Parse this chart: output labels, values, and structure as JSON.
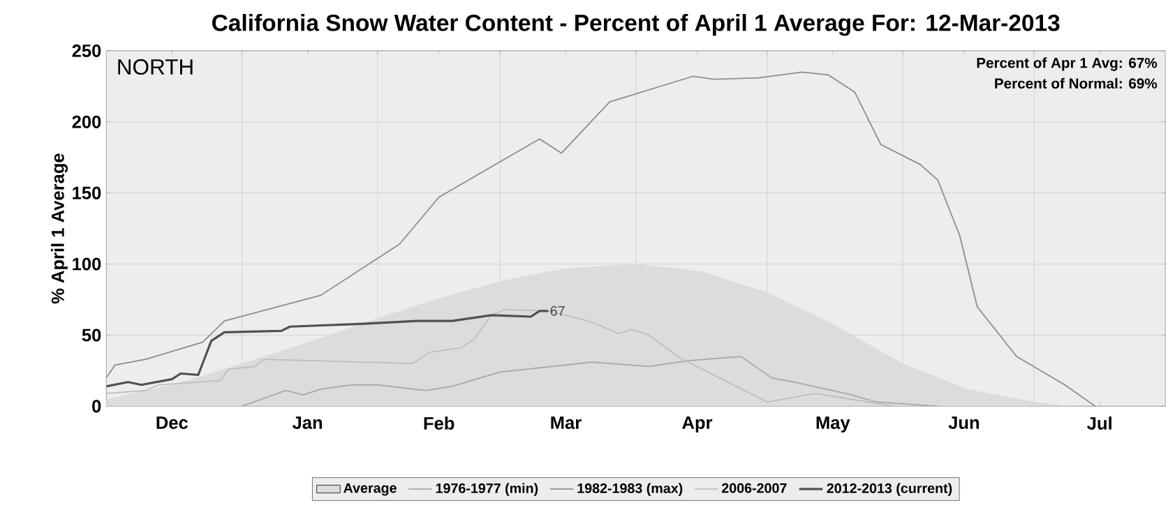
{
  "chart_data": {
    "type": "line",
    "title": "California Snow Water Content - Percent of April 1 Average For: 12-Mar-2013",
    "ylabel": "% April 1 Average",
    "x": [
      "2012-12-01",
      "2012-12-16",
      "2013-01-01",
      "2013-01-16",
      "2013-02-01",
      "2013-02-14",
      "2013-03-01",
      "2013-03-16",
      "2013-04-01",
      "2013-04-16",
      "2013-05-01",
      "2013-05-16",
      "2013-06-01",
      "2013-06-16",
      "2013-07-01",
      "2013-07-09"
    ],
    "xlim": [
      "2012-12-01",
      "2013-07-31"
    ],
    "xticks": [
      {
        "value": "2012-12-16",
        "label": "Dec"
      },
      {
        "value": "2013-01-16",
        "label": "Jan"
      },
      {
        "value": "2013-02-15",
        "label": "Feb"
      },
      {
        "value": "2013-03-16",
        "label": "Mar"
      },
      {
        "value": "2013-04-15",
        "label": "Apr"
      },
      {
        "value": "2013-05-16",
        "label": "May"
      },
      {
        "value": "2013-06-15",
        "label": "Jun"
      },
      {
        "value": "2013-07-16",
        "label": "Jul"
      },
      {
        "value": "2013-01-01",
        "label": null
      },
      {
        "value": "2013-02-01",
        "label": null
      },
      {
        "value": "2013-03-01",
        "label": null
      },
      {
        "value": "2013-04-01",
        "label": null
      },
      {
        "value": "2013-05-01",
        "label": null
      },
      {
        "value": "2013-06-01",
        "label": null
      },
      {
        "value": "2013-07-01",
        "label": null
      }
    ],
    "ylim": [
      0,
      250
    ],
    "yticks": [
      0,
      50,
      100,
      150,
      200,
      250
    ],
    "grid": true,
    "legend": "bottom",
    "series": [
      {
        "name": "Average",
        "type": "area",
        "color": "#dcdcdc",
        "values": [
          5,
          15,
          30,
          45,
          62,
          75,
          88,
          97,
          100,
          95,
          80,
          58,
          30,
          12,
          3,
          0
        ]
      },
      {
        "name": "1976-1977 (min)",
        "color": "#a8a8a8",
        "x": [
          "2013-01-01",
          "2013-01-11",
          "2013-01-15",
          "2013-01-19",
          "2013-01-26",
          "2013-02-01",
          "2013-02-12",
          "2013-02-18",
          "2013-03-01",
          "2013-03-22",
          "2013-04-04",
          "2013-04-13",
          "2013-04-25",
          "2013-05-02",
          "2013-05-07",
          "2013-05-19",
          "2013-05-26",
          "2013-06-09"
        ],
        "values": [
          0,
          11,
          8,
          12,
          15,
          15,
          11,
          14,
          24,
          31,
          28,
          32,
          35,
          20,
          17,
          9,
          3,
          0
        ]
      },
      {
        "name": "1982-1983 (max)",
        "color": "#8c8c8c",
        "x": [
          "2012-12-01",
          "2012-12-03",
          "2012-12-10",
          "2012-12-23",
          "2012-12-28",
          "2013-01-19",
          "2013-02-06",
          "2013-02-15",
          "2013-03-10",
          "2013-03-15",
          "2013-03-26",
          "2013-04-14",
          "2013-04-19",
          "2013-04-29",
          "2013-05-09",
          "2013-05-15",
          "2013-05-21",
          "2013-05-27",
          "2013-06-05",
          "2013-06-09",
          "2013-06-14",
          "2013-06-18",
          "2013-06-27",
          "2013-07-08",
          "2013-07-15"
        ],
        "values": [
          20,
          29,
          33,
          45,
          60,
          78,
          114,
          147,
          188,
          178,
          214,
          232,
          230,
          231,
          235,
          233,
          221,
          184,
          170,
          159,
          120,
          70,
          35,
          15,
          0
        ]
      },
      {
        "name": "2006-2007",
        "color": "#bdbdbd",
        "x": [
          "2012-12-01",
          "2012-12-10",
          "2012-12-13",
          "2012-12-27",
          "2012-12-29",
          "2013-01-04",
          "2013-01-06",
          "2013-02-09",
          "2013-02-13",
          "2013-02-20",
          "2013-02-23",
          "2013-02-27",
          "2013-03-02",
          "2013-03-12",
          "2013-03-20",
          "2013-03-26",
          "2013-03-28",
          "2013-03-31",
          "2013-04-04",
          "2013-04-11",
          "2013-04-20",
          "2013-05-01",
          "2013-05-12",
          "2013-05-30"
        ],
        "values": [
          9,
          11,
          15,
          18,
          26,
          28,
          33,
          30,
          38,
          41,
          47,
          64,
          68,
          67,
          61,
          54,
          51,
          54,
          50,
          34,
          20,
          3,
          9,
          0
        ]
      },
      {
        "name": "2012-2013 (current)",
        "color": "#505050",
        "x": [
          "2012-12-01",
          "2012-12-06",
          "2012-12-09",
          "2012-12-16",
          "2012-12-18",
          "2012-12-22",
          "2012-12-25",
          "2012-12-28",
          "2013-01-10",
          "2013-01-12",
          "2013-01-29",
          "2013-02-10",
          "2013-02-18",
          "2013-02-27",
          "2013-03-08",
          "2013-03-10",
          "2013-03-12"
        ],
        "values": [
          14,
          17,
          15,
          19,
          23,
          22,
          46,
          52,
          53,
          56,
          58,
          60,
          60,
          64,
          63,
          67,
          67
        ]
      }
    ],
    "annotations": [
      "NORTH",
      "Percent of Apr 1 Avg: 67%",
      "Percent of Normal: 69%",
      {
        "text": "67",
        "x": "2013-03-12",
        "y": 67
      }
    ]
  }
}
